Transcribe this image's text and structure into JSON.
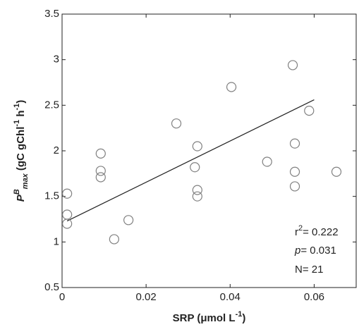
{
  "chart_data": {
    "type": "scatter",
    "x_label": [
      {
        "text": "SRP (μmol L"
      },
      {
        "text": "-1",
        "sup": true
      },
      {
        "text": ")"
      }
    ],
    "y_label": [
      {
        "text": "P",
        "italic": true
      },
      {
        "text": "B",
        "sup": true,
        "italic": true
      },
      {
        "text": "max",
        "sub": true,
        "italic": true
      },
      {
        "text": " (gC gChl"
      },
      {
        "text": "-1",
        "sup": true
      },
      {
        "text": " h"
      },
      {
        "text": "-1",
        "sup": true
      },
      {
        "text": ")"
      }
    ],
    "x": [
      0.0012,
      0.0012,
      0.0012,
      0.0092,
      0.0092,
      0.0092,
      0.0124,
      0.0158,
      0.0272,
      0.0316,
      0.0322,
      0.0322,
      0.0322,
      0.0403,
      0.0488,
      0.0549,
      0.0588,
      0.0554,
      0.0554,
      0.0554,
      0.0653
    ],
    "values": [
      1.53,
      1.3,
      1.2,
      1.97,
      1.78,
      1.71,
      1.03,
      1.24,
      2.3,
      1.82,
      2.05,
      1.57,
      1.5,
      2.7,
      1.88,
      2.94,
      2.44,
      2.08,
      1.77,
      1.61,
      1.77
    ],
    "color": "#808080",
    "fit": {
      "x": [
        0.0012,
        0.06
      ],
      "values": [
        1.23,
        2.56
      ],
      "color": "#222222"
    },
    "xlim": [
      0,
      0.07
    ],
    "xticks": [
      0,
      0.02,
      0.04,
      0.06
    ],
    "ylim": [
      0.5,
      3.5
    ],
    "yticks": [
      0.5,
      1,
      1.5,
      2,
      2.5,
      3,
      3.5
    ],
    "annotations": {
      "r2": {
        "base": "r",
        "sup": "2",
        "text": "= 0.222"
      },
      "p": {
        "italic": "p",
        "text": "= 0.031"
      },
      "n": "N= 21"
    }
  }
}
